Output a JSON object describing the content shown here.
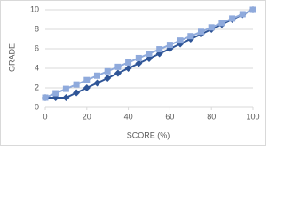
{
  "chart_data": {
    "type": "line",
    "x_label": "SCORE (%)",
    "y_label": "GRADE",
    "x": [
      0,
      5,
      10,
      15,
      20,
      25,
      30,
      35,
      40,
      45,
      50,
      55,
      60,
      65,
      70,
      75,
      80,
      85,
      90,
      95,
      100
    ],
    "series": [
      {
        "color": "#2f5597",
        "marker": "diamond",
        "values": [
          1,
          1,
          1,
          1.5,
          2,
          2.5,
          3,
          3.5,
          4,
          4.5,
          5,
          5.5,
          6,
          6.5,
          7,
          7.5,
          8,
          8.5,
          9,
          9.5,
          10
        ]
      },
      {
        "color": "#8faadc",
        "marker": "square",
        "values": [
          1,
          1.45,
          1.9,
          2.35,
          2.8,
          3.25,
          3.7,
          4.15,
          4.6,
          5.05,
          5.5,
          5.95,
          6.4,
          6.85,
          7.3,
          7.75,
          8.2,
          8.65,
          9.1,
          9.55,
          10
        ]
      }
    ],
    "xlim": [
      0,
      100
    ],
    "xticks": [
      0,
      20,
      40,
      60,
      80,
      100
    ],
    "ylim": [
      0,
      10
    ],
    "yticks": [
      0,
      2,
      4,
      6,
      8,
      10
    ],
    "grid": true
  }
}
